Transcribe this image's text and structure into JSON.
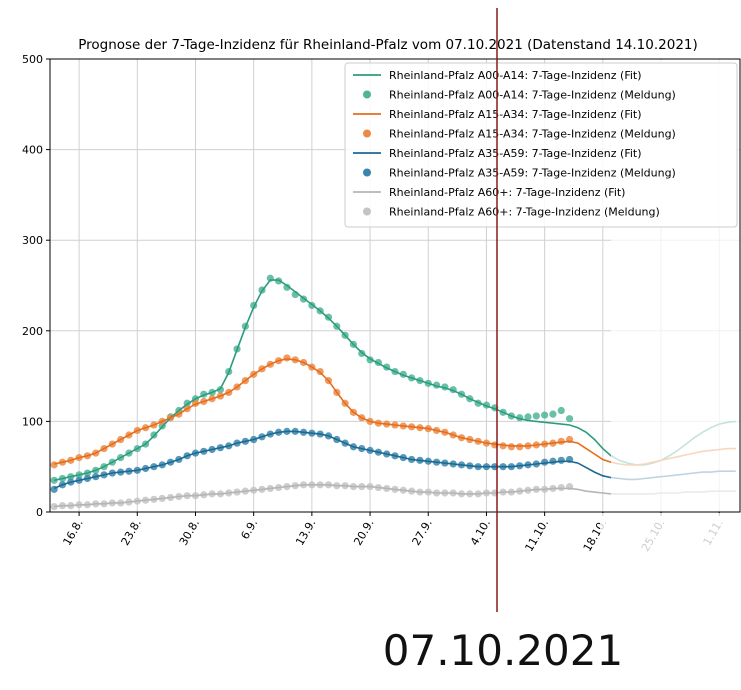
{
  "chart_data": {
    "type": "line",
    "title": "Prognose der 7-Tage-Inzidenz für Rheinland-Pfalz vom 07.10.2021 (Datenstand 14.10.2021)",
    "annotation": "07.10.2021",
    "categories": [
      null,
      null,
      null,
      "16.8.",
      null,
      null,
      null,
      null,
      null,
      null,
      "23.8.",
      null,
      null,
      null,
      null,
      null,
      null,
      "30.8.",
      null,
      null,
      null,
      null,
      null,
      null,
      "6.9.",
      null,
      null,
      null,
      null,
      null,
      null,
      "13.9.",
      null,
      null,
      null,
      null,
      null,
      null,
      "20.9.",
      null,
      null,
      null,
      null,
      null,
      null,
      "27.9.",
      null,
      null,
      null,
      null,
      null,
      null,
      "4.10.",
      null,
      null,
      null,
      null,
      null,
      null,
      "11.10.",
      null,
      null,
      null,
      null,
      null,
      null,
      "18.10.",
      null,
      null,
      null,
      null,
      null,
      null,
      "25.10.",
      null,
      null,
      null,
      null,
      null,
      null,
      "1.11.",
      null,
      null
    ],
    "ylim": [
      0,
      500
    ],
    "yticks": [
      0,
      100,
      200,
      300,
      400,
      500
    ],
    "grid": true,
    "legend": "upper right",
    "series": [
      {
        "name": "Rheinland-Pfalz A00-A14: 7-Tage-Inzidenz (Fit)",
        "kind": "line",
        "color": "#2a9d7f",
        "values": [
          35,
          37,
          39,
          41,
          43,
          46,
          50,
          55,
          60,
          65,
          70,
          75,
          84,
          94,
          104,
          112,
          119,
          125,
          129,
          132,
          136,
          154,
          179,
          204,
          226,
          244,
          256,
          256,
          250,
          243,
          236,
          229,
          222,
          214,
          205,
          195,
          185,
          176,
          169,
          164,
          159,
          155,
          151,
          148,
          145,
          142,
          139,
          137,
          134,
          130,
          125,
          121,
          117,
          114,
          110,
          106,
          103,
          101,
          100,
          99,
          98,
          97,
          96,
          93,
          88,
          80,
          70,
          62,
          57,
          54,
          52,
          52,
          54,
          57,
          62,
          68,
          75,
          82,
          88,
          93,
          97,
          99,
          100
        ]
      },
      {
        "name": "Rheinland-Pfalz A00-A14: 7-Tage-Inzidenz (Meldung)",
        "kind": "scatter",
        "color": "#4fb596",
        "values": [
          35,
          37,
          39,
          41,
          43,
          46,
          50,
          55,
          60,
          65,
          70,
          75,
          85,
          95,
          105,
          112,
          120,
          125,
          130,
          132,
          135,
          155,
          180,
          205,
          228,
          245,
          258,
          255,
          248,
          240,
          235,
          228,
          222,
          215,
          205,
          195,
          185,
          175,
          168,
          165,
          160,
          155,
          152,
          148,
          145,
          142,
          140,
          138,
          135,
          130,
          125,
          120,
          118,
          115,
          110,
          106,
          104,
          105,
          106,
          107,
          108,
          112,
          103,
          null,
          null,
          null,
          null,
          null,
          null,
          null,
          null,
          null,
          null,
          null,
          null,
          null,
          null,
          null,
          null,
          null,
          null,
          null,
          null
        ]
      },
      {
        "name": "Rheinland-Pfalz A15-A34: 7-Tage-Inzidenz (Fit)",
        "kind": "line",
        "color": "#e66d1a",
        "values": [
          53,
          55,
          57,
          60,
          62,
          65,
          70,
          75,
          80,
          85,
          90,
          93,
          96,
          100,
          104,
          108,
          114,
          119,
          122,
          125,
          128,
          132,
          138,
          145,
          152,
          158,
          163,
          167,
          169,
          168,
          165,
          160,
          154,
          145,
          132,
          120,
          110,
          104,
          100,
          98,
          97,
          96,
          95,
          94,
          93,
          92,
          90,
          88,
          85,
          82,
          80,
          78,
          76,
          75,
          74,
          73,
          73,
          73,
          74,
          75,
          76,
          77,
          78,
          76,
          70,
          64,
          58,
          55,
          53,
          52,
          52,
          53,
          55,
          57,
          59,
          61,
          63,
          65,
          67,
          68,
          69,
          70,
          70
        ]
      },
      {
        "name": "Rheinland-Pfalz A15-A34: 7-Tage-Inzidenz (Meldung)",
        "kind": "scatter",
        "color": "#ec8a45",
        "values": [
          52,
          55,
          57,
          60,
          62,
          65,
          70,
          75,
          80,
          85,
          90,
          93,
          96,
          100,
          104,
          108,
          114,
          120,
          122,
          125,
          128,
          132,
          138,
          145,
          152,
          158,
          163,
          167,
          170,
          168,
          165,
          160,
          155,
          145,
          132,
          120,
          110,
          104,
          100,
          98,
          97,
          96,
          95,
          94,
          93,
          92,
          90,
          88,
          85,
          82,
          80,
          78,
          76,
          74,
          73,
          72,
          72,
          73,
          74,
          75,
          76,
          78,
          80,
          null,
          null,
          null,
          null,
          null,
          null,
          null,
          null,
          null,
          null,
          null,
          null,
          null,
          null,
          null,
          null,
          null,
          null,
          null,
          null
        ]
      },
      {
        "name": "Rheinland-Pfalz A35-A59: 7-Tage-Inzidenz (Fit)",
        "kind": "line",
        "color": "#1b6a93",
        "values": [
          26,
          30,
          33,
          35,
          37,
          39,
          41,
          43,
          44,
          45,
          46,
          48,
          50,
          52,
          55,
          58,
          62,
          65,
          67,
          69,
          71,
          73,
          76,
          78,
          80,
          83,
          86,
          88,
          89,
          89,
          88,
          87,
          86,
          84,
          80,
          76,
          72,
          70,
          68,
          66,
          64,
          62,
          60,
          58,
          57,
          56,
          55,
          54,
          53,
          52,
          51,
          50,
          50,
          50,
          50,
          50,
          51,
          52,
          53,
          54,
          55,
          56,
          56,
          54,
          49,
          44,
          40,
          38,
          37,
          36,
          36,
          37,
          38,
          39,
          40,
          41,
          42,
          43,
          44,
          44,
          45,
          45,
          45
        ]
      },
      {
        "name": "Rheinland-Pfalz A35-A59: 7-Tage-Inzidenz (Meldung)",
        "kind": "scatter",
        "color": "#3a85ad",
        "values": [
          25,
          30,
          33,
          35,
          37,
          39,
          41,
          43,
          44,
          45,
          46,
          48,
          50,
          52,
          55,
          58,
          62,
          65,
          67,
          69,
          71,
          73,
          76,
          78,
          80,
          83,
          86,
          88,
          89,
          89,
          88,
          87,
          86,
          84,
          80,
          76,
          72,
          70,
          68,
          66,
          64,
          62,
          60,
          58,
          57,
          56,
          55,
          54,
          53,
          52,
          51,
          50,
          50,
          50,
          50,
          50,
          51,
          52,
          53,
          55,
          56,
          57,
          58,
          null,
          null,
          null,
          null,
          null,
          null,
          null,
          null,
          null,
          null,
          null,
          null,
          null,
          null,
          null,
          null,
          null,
          null,
          null,
          null
        ]
      },
      {
        "name": "Rheinland-Pfalz A60+: 7-Tage-Inzidenz (Fit)",
        "kind": "line",
        "color": "#b5b5b5",
        "values": [
          6,
          7,
          7,
          8,
          8,
          9,
          9,
          10,
          10,
          11,
          12,
          13,
          14,
          15,
          16,
          17,
          18,
          18,
          19,
          20,
          20,
          21,
          22,
          23,
          24,
          25,
          26,
          27,
          28,
          29,
          30,
          30,
          30,
          30,
          29,
          29,
          28,
          28,
          28,
          27,
          26,
          25,
          24,
          23,
          22,
          22,
          21,
          21,
          21,
          20,
          20,
          20,
          21,
          21,
          22,
          22,
          23,
          24,
          25,
          25,
          26,
          26,
          26,
          25,
          23,
          22,
          21,
          20,
          20,
          20,
          20,
          20,
          20,
          21,
          21,
          21,
          22,
          22,
          22,
          23,
          23,
          23,
          23
        ]
      },
      {
        "name": "Rheinland-Pfalz A60+: 7-Tage-Inzidenz (Meldung)",
        "kind": "scatter",
        "color": "#c4c4c4",
        "values": [
          6,
          7,
          7,
          8,
          8,
          9,
          9,
          10,
          10,
          11,
          12,
          13,
          14,
          15,
          16,
          17,
          18,
          18,
          19,
          20,
          20,
          21,
          22,
          23,
          24,
          25,
          26,
          27,
          28,
          29,
          30,
          30,
          30,
          30,
          29,
          29,
          28,
          28,
          28,
          27,
          26,
          25,
          24,
          23,
          22,
          22,
          21,
          21,
          21,
          20,
          20,
          20,
          21,
          21,
          22,
          22,
          23,
          24,
          25,
          25,
          26,
          27,
          28,
          null,
          null,
          null,
          null,
          null,
          null,
          null,
          null,
          null,
          null,
          null,
          null,
          null,
          null,
          null,
          null,
          null,
          null,
          null,
          null
        ]
      }
    ]
  }
}
